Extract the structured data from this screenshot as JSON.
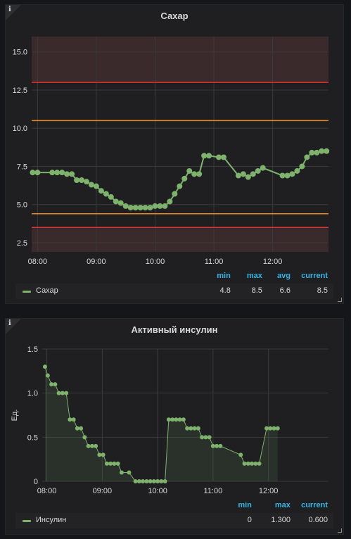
{
  "panels": [
    {
      "title": "Сахар",
      "legend": {
        "headers": [
          "min",
          "max",
          "avg",
          "current"
        ],
        "series_name": "Сахар",
        "values": [
          "4.8",
          "8.5",
          "6.6",
          "8.5"
        ]
      }
    },
    {
      "title": "Активный инсулин",
      "legend": {
        "headers": [
          "min",
          "max",
          "current"
        ],
        "series_name": "Инсулин",
        "values": [
          "0",
          "1.300",
          "0.600"
        ]
      }
    }
  ],
  "colors": {
    "series": "#7eb26d",
    "threshold_red": "#e02f2f",
    "threshold_orange": "#eb8a1e",
    "band_red": "#3a2a2c",
    "grid": "#3a3a3c",
    "legend_header": "#33b5e5"
  },
  "chart_data": [
    {
      "type": "line",
      "title": "Сахар",
      "x_unit": "time",
      "xlim": [
        "07:54",
        "12:57"
      ],
      "ylim": [
        1.9,
        16.0
      ],
      "y_ticks": [
        "2.5",
        "5.0",
        "7.5",
        "10.0",
        "12.5",
        "15.0"
      ],
      "x_ticks": [
        "08:00",
        "09:00",
        "10:00",
        "11:00",
        "12:00"
      ],
      "grid": true,
      "legend_placement": "bottom",
      "thresholds": {
        "red_upper": 13.0,
        "orange_upper": 10.5,
        "orange_lower": 4.4,
        "red_lower": 3.5
      },
      "series": [
        {
          "name": "Сахар",
          "points": [
            [
              "07:55",
              7.1
            ],
            [
              "08:00",
              7.1
            ],
            [
              "08:15",
              7.1
            ],
            [
              "08:20",
              7.1
            ],
            [
              "08:25",
              7.1
            ],
            [
              "08:30",
              7.0
            ],
            [
              "08:35",
              7.0
            ],
            [
              "08:40",
              6.6
            ],
            [
              "08:45",
              6.6
            ],
            [
              "08:50",
              6.5
            ],
            [
              "08:55",
              6.3
            ],
            [
              "09:00",
              6.2
            ],
            [
              "09:05",
              5.9
            ],
            [
              "09:10",
              5.7
            ],
            [
              "09:15",
              5.5
            ],
            [
              "09:20",
              5.2
            ],
            [
              "09:25",
              5.1
            ],
            [
              "09:30",
              4.9
            ],
            [
              "09:35",
              4.8
            ],
            [
              "09:40",
              4.8
            ],
            [
              "09:45",
              4.8
            ],
            [
              "09:50",
              4.8
            ],
            [
              "09:55",
              4.8
            ],
            [
              "10:00",
              4.9
            ],
            [
              "10:05",
              4.9
            ],
            [
              "10:10",
              4.9
            ],
            [
              "10:15",
              5.2
            ],
            [
              "10:20",
              5.7
            ],
            [
              "10:25",
              6.2
            ],
            [
              "10:30",
              6.7
            ],
            [
              "10:35",
              7.2
            ],
            [
              "10:40",
              7.0
            ],
            [
              "10:45",
              7.0
            ],
            [
              "10:50",
              8.2
            ],
            [
              "10:55",
              8.2
            ],
            [
              "11:05",
              8.1
            ],
            [
              "11:10",
              8.1
            ],
            [
              "11:25",
              6.9
            ],
            [
              "11:30",
              7.0
            ],
            [
              "11:35",
              6.8
            ],
            [
              "11:40",
              7.0
            ],
            [
              "11:45",
              7.2
            ],
            [
              "11:50",
              7.4
            ],
            [
              "12:10",
              6.9
            ],
            [
              "12:15",
              6.9
            ],
            [
              "12:20",
              7.0
            ],
            [
              "12:25",
              7.2
            ],
            [
              "12:30",
              7.5
            ],
            [
              "12:35",
              8.1
            ],
            [
              "12:40",
              8.4
            ],
            [
              "12:45",
              8.4
            ],
            [
              "12:50",
              8.5
            ],
            [
              "12:55",
              8.5
            ]
          ]
        }
      ]
    },
    {
      "type": "area",
      "title": "Активный инсулин",
      "ylabel": "Ед.",
      "x_unit": "time",
      "xlim": [
        "07:55",
        "13:05"
      ],
      "ylim": [
        0,
        1.5
      ],
      "y_ticks": [
        "0",
        "0.5",
        "1.0",
        "1.5"
      ],
      "x_ticks": [
        "08:00",
        "09:00",
        "10:00",
        "11:00",
        "12:00"
      ],
      "grid": true,
      "legend_placement": "bottom",
      "series": [
        {
          "name": "Инсулин",
          "points": [
            [
              "07:58",
              1.3
            ],
            [
              "08:01",
              1.2
            ],
            [
              "08:05",
              1.1
            ],
            [
              "08:09",
              1.1
            ],
            [
              "08:13",
              1.0
            ],
            [
              "08:17",
              1.0
            ],
            [
              "08:21",
              1.0
            ],
            [
              "08:25",
              0.7
            ],
            [
              "08:29",
              0.7
            ],
            [
              "08:33",
              0.6
            ],
            [
              "08:37",
              0.6
            ],
            [
              "08:41",
              0.5
            ],
            [
              "08:45",
              0.4
            ],
            [
              "08:49",
              0.4
            ],
            [
              "08:53",
              0.4
            ],
            [
              "08:57",
              0.3
            ],
            [
              "09:01",
              0.3
            ],
            [
              "09:05",
              0.2
            ],
            [
              "09:09",
              0.2
            ],
            [
              "09:13",
              0.2
            ],
            [
              "09:17",
              0.2
            ],
            [
              "09:21",
              0.1
            ],
            [
              "09:29",
              0.1
            ],
            [
              "09:36",
              0.0
            ],
            [
              "09:40",
              0.0
            ],
            [
              "09:44",
              0.0
            ],
            [
              "09:48",
              0.0
            ],
            [
              "09:52",
              0.0
            ],
            [
              "09:56",
              0.0
            ],
            [
              "10:00",
              0.0
            ],
            [
              "10:04",
              0.0
            ],
            [
              "10:08",
              0.0
            ],
            [
              "10:12",
              0.7
            ],
            [
              "10:16",
              0.7
            ],
            [
              "10:20",
              0.7
            ],
            [
              "10:24",
              0.7
            ],
            [
              "10:28",
              0.7
            ],
            [
              "10:32",
              0.6
            ],
            [
              "10:36",
              0.6
            ],
            [
              "10:40",
              0.6
            ],
            [
              "10:44",
              0.6
            ],
            [
              "10:48",
              0.5
            ],
            [
              "10:52",
              0.5
            ],
            [
              "10:56",
              0.5
            ],
            [
              "11:00",
              0.4
            ],
            [
              "11:04",
              0.4
            ],
            [
              "11:08",
              0.4
            ],
            [
              "11:30",
              0.3
            ],
            [
              "11:34",
              0.2
            ],
            [
              "11:38",
              0.2
            ],
            [
              "11:42",
              0.2
            ],
            [
              "11:46",
              0.2
            ],
            [
              "11:50",
              0.2
            ],
            [
              "11:58",
              0.6
            ],
            [
              "12:02",
              0.6
            ],
            [
              "12:06",
              0.6
            ],
            [
              "12:10",
              0.6
            ]
          ]
        }
      ]
    }
  ]
}
